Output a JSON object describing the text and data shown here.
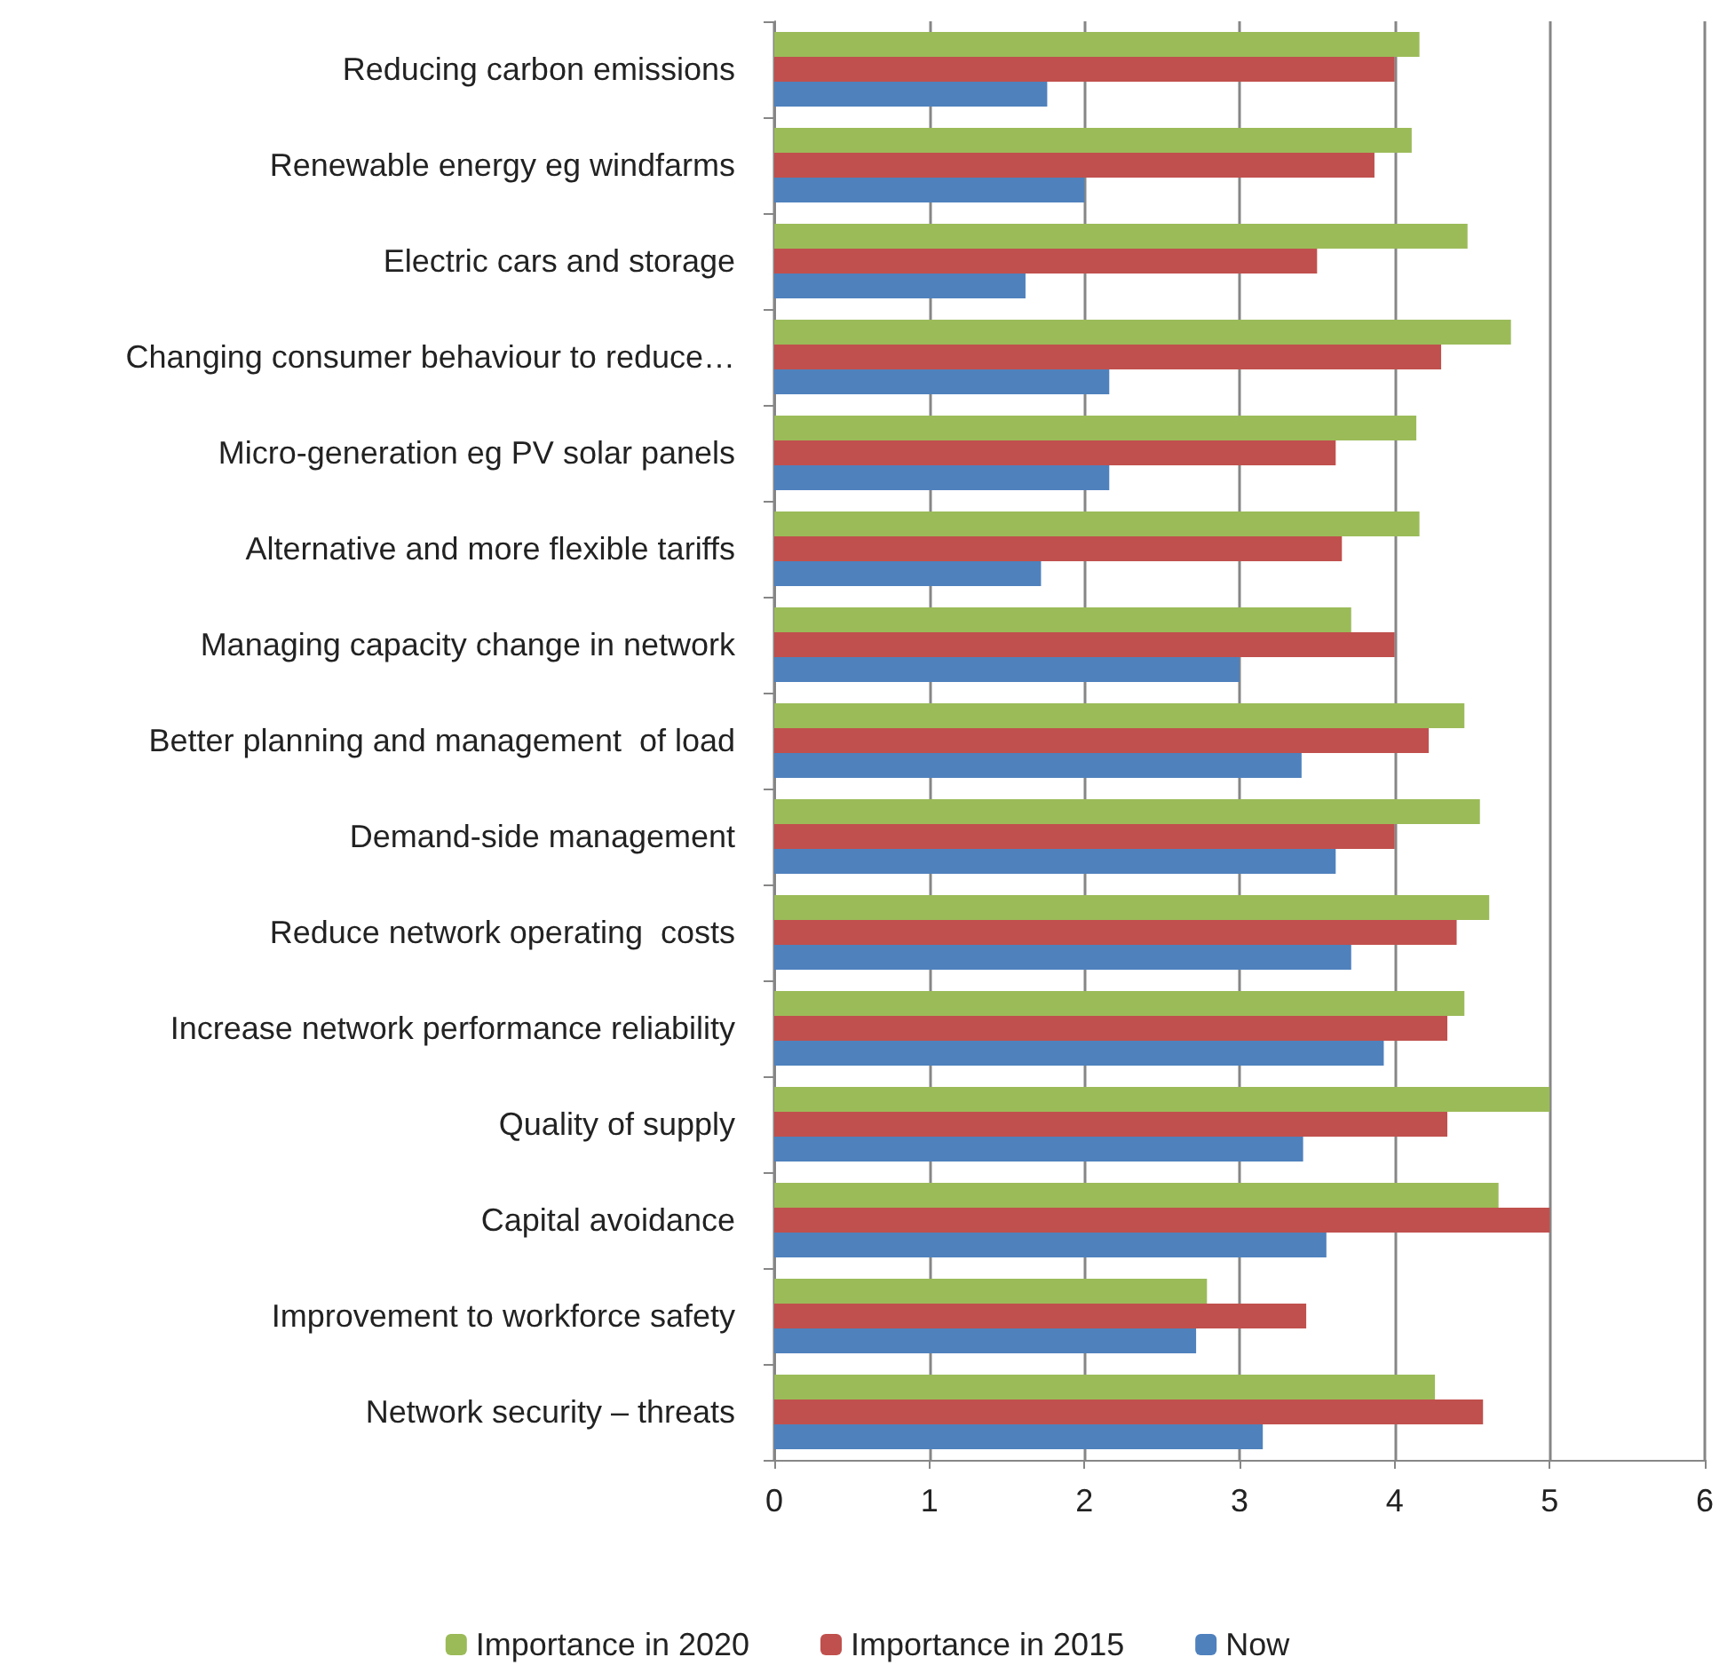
{
  "chart_data": {
    "type": "bar",
    "orientation": "horizontal",
    "categories": [
      "Reducing carbon emissions",
      "Renewable energy eg windfarms",
      "Electric cars and storage",
      "Changing consumer behaviour to reduce…",
      "Micro-generation eg PV solar panels",
      "Alternative and more flexible tariffs",
      "Managing capacity change in network",
      "Better planning and management  of load",
      "Demand-side management",
      "Reduce network operating  costs",
      "Increase network performance reliability",
      "Quality of supply",
      "Capital avoidance",
      "Improvement to workforce safety",
      "Network security – threats"
    ],
    "series": [
      {
        "name": "Importance in 2020",
        "color": "#9bbb59",
        "values": [
          4.16,
          4.11,
          4.47,
          4.75,
          4.14,
          4.16,
          3.72,
          4.45,
          4.55,
          4.61,
          4.45,
          5.0,
          4.67,
          2.79,
          4.26
        ]
      },
      {
        "name": "Importance in 2015",
        "color": "#c0504d",
        "values": [
          4.0,
          3.87,
          3.5,
          4.3,
          3.62,
          3.66,
          4.0,
          4.22,
          4.0,
          4.4,
          4.34,
          4.34,
          5.0,
          3.43,
          4.57
        ]
      },
      {
        "name": "Now",
        "color": "#4f81bd",
        "values": [
          1.76,
          2.0,
          1.62,
          2.16,
          2.16,
          1.72,
          3.0,
          3.4,
          3.62,
          3.72,
          3.93,
          3.41,
          3.56,
          2.72,
          3.15
        ]
      }
    ],
    "xlim": [
      0,
      6
    ],
    "xticks": [
      0,
      1,
      2,
      3,
      4,
      5,
      6
    ],
    "grid": "x",
    "legend": "bottom"
  }
}
